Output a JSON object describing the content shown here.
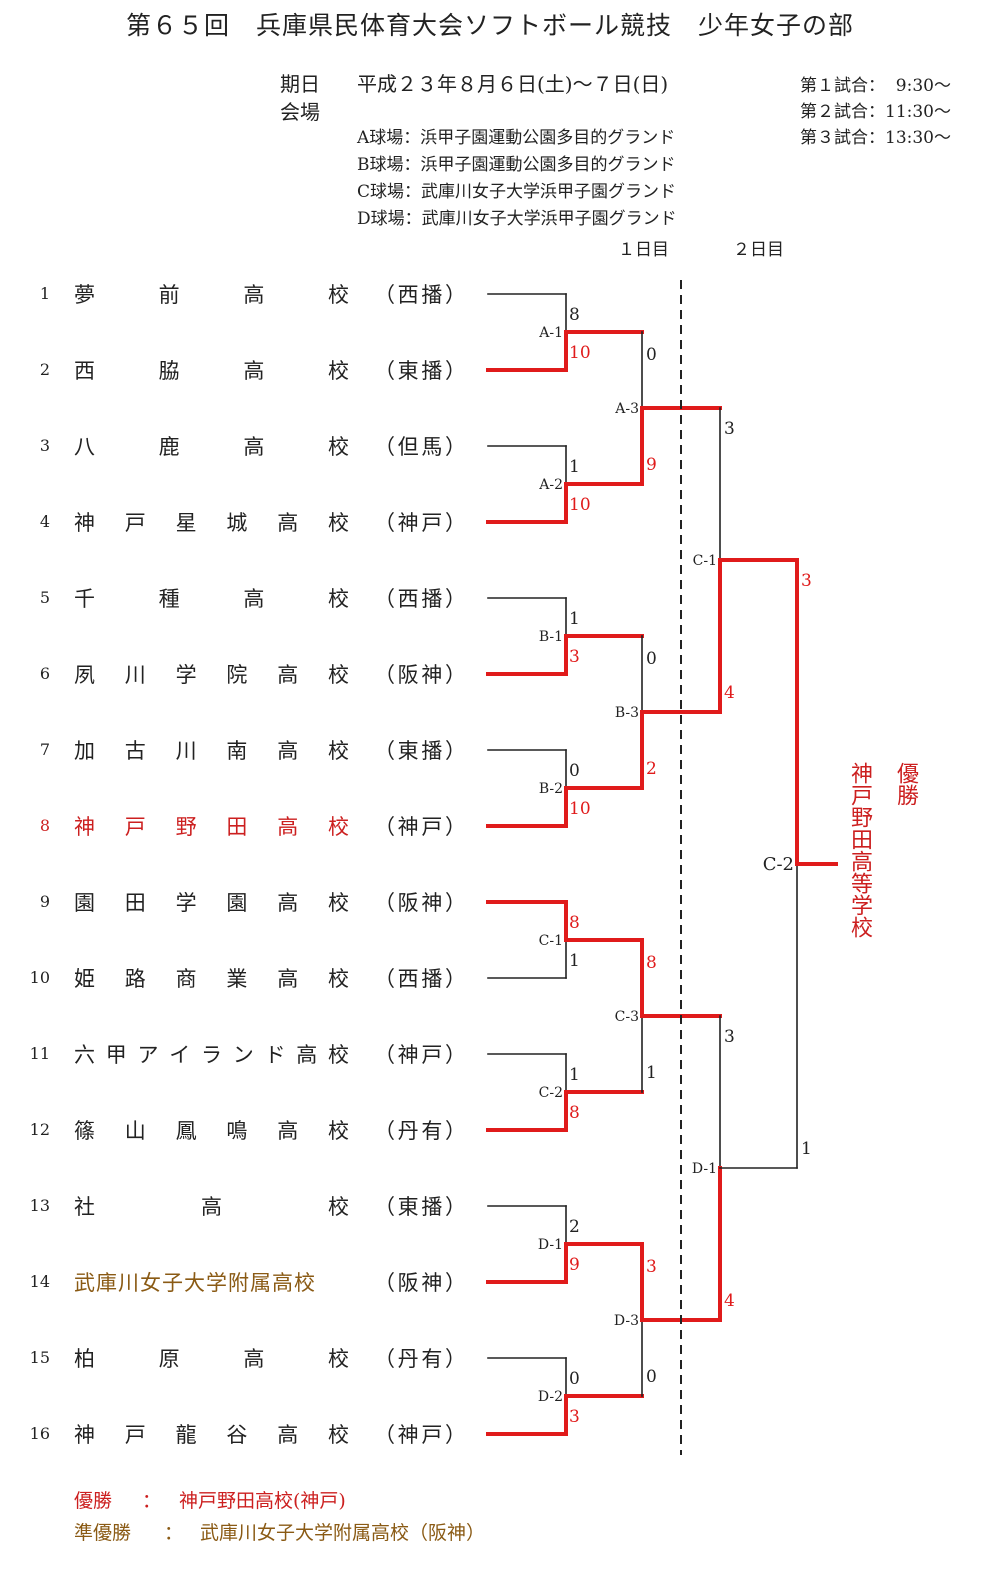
{
  "title": "第６５回　兵庫県民体育大会ソフトボール競技　少年女子の部",
  "schedule": {
    "date_label": "期日",
    "date_value": "平成２３年８月６日(土)～７日(日)",
    "venue_label": "会場",
    "venues": [
      "A球場：浜甲子園運動公園多目的グランド",
      "B球場：浜甲子園運動公園多目的グランド",
      "C球場：武庫川女子大学浜甲子園グランド",
      "D球場：武庫川女子大学浜甲子園グランド"
    ],
    "match_times": [
      "第１試合：  9:30～",
      "第２試合：11:30～",
      "第３試合：13:30～"
    ],
    "day1": "１日目",
    "day2": "２日目"
  },
  "teams": [
    {
      "num": "1",
      "name": "夢前高校",
      "pref": "（西播）"
    },
    {
      "num": "2",
      "name": "西脇高校",
      "pref": "（東播）"
    },
    {
      "num": "3",
      "name": "八鹿高校",
      "pref": "（但馬）"
    },
    {
      "num": "4",
      "name": "神戸星城高校",
      "pref": "（神戸）"
    },
    {
      "num": "5",
      "name": "千種高校",
      "pref": "（西播）"
    },
    {
      "num": "6",
      "name": "夙川学院高校",
      "pref": "（阪神）"
    },
    {
      "num": "7",
      "name": "加古川南高校",
      "pref": "（東播）"
    },
    {
      "num": "8",
      "name": "神戸野田高校",
      "pref": "（神戸）"
    },
    {
      "num": "9",
      "name": "園田学園高校",
      "pref": "（阪神）"
    },
    {
      "num": "10",
      "name": "姫路商業高校",
      "pref": "（西播）"
    },
    {
      "num": "11",
      "name": "六甲アイランド高校",
      "pref": "（神戸）"
    },
    {
      "num": "12",
      "name": "篠山鳳鳴高校",
      "pref": "（丹有）"
    },
    {
      "num": "13",
      "name": "社高校",
      "pref": "（東播）"
    },
    {
      "num": "14",
      "name": "武庫川女子大学附属高校",
      "pref": "（阪神）"
    },
    {
      "num": "15",
      "name": "柏原高校",
      "pref": "（丹有）"
    },
    {
      "num": "16",
      "name": "神戸龍谷高校",
      "pref": "（神戸）"
    }
  ],
  "round1": [
    {
      "label": "A-1",
      "top_score": "8",
      "bottom_score": "10"
    },
    {
      "label": "A-2",
      "top_score": "1",
      "bottom_score": "10"
    },
    {
      "label": "B-1",
      "top_score": "1",
      "bottom_score": "3"
    },
    {
      "label": "B-2",
      "top_score": "0",
      "bottom_score": "10"
    },
    {
      "label": "C-1",
      "top_score": "8",
      "bottom_score": "1"
    },
    {
      "label": "C-2",
      "top_score": "1",
      "bottom_score": "8"
    },
    {
      "label": "D-1",
      "top_score": "2",
      "bottom_score": "9"
    },
    {
      "label": "D-2",
      "top_score": "0",
      "bottom_score": "3"
    }
  ],
  "round2": [
    {
      "label": "A-3",
      "top_score": "0",
      "bottom_score": "9"
    },
    {
      "label": "B-3",
      "top_score": "0",
      "bottom_score": "2"
    },
    {
      "label": "C-3",
      "top_score": "8",
      "bottom_score": "1"
    },
    {
      "label": "D-3",
      "top_score": "3",
      "bottom_score": "0"
    }
  ],
  "round3": [
    {
      "label": "C-1",
      "top_score": "3",
      "bottom_score": "4"
    },
    {
      "label": "D-1",
      "top_score": "3",
      "bottom_score": "4"
    }
  ],
  "final": {
    "label": "C-2",
    "top_score": "3",
    "bottom_score": "1"
  },
  "champion": {
    "label": "優勝",
    "name": "神戸野田高等学校"
  },
  "footer": {
    "winner_label": "優勝",
    "winner_value": "神戸野田高校(神戸)",
    "runner_label": "準優勝",
    "runner_value": "武庫川女子大学附属高校（阪神）",
    "colon": "："
  },
  "colors": {
    "win": "#e01b1b",
    "line": "#222222",
    "champion_text": "#cc1f1f",
    "runner_text": "#8a5a14"
  }
}
